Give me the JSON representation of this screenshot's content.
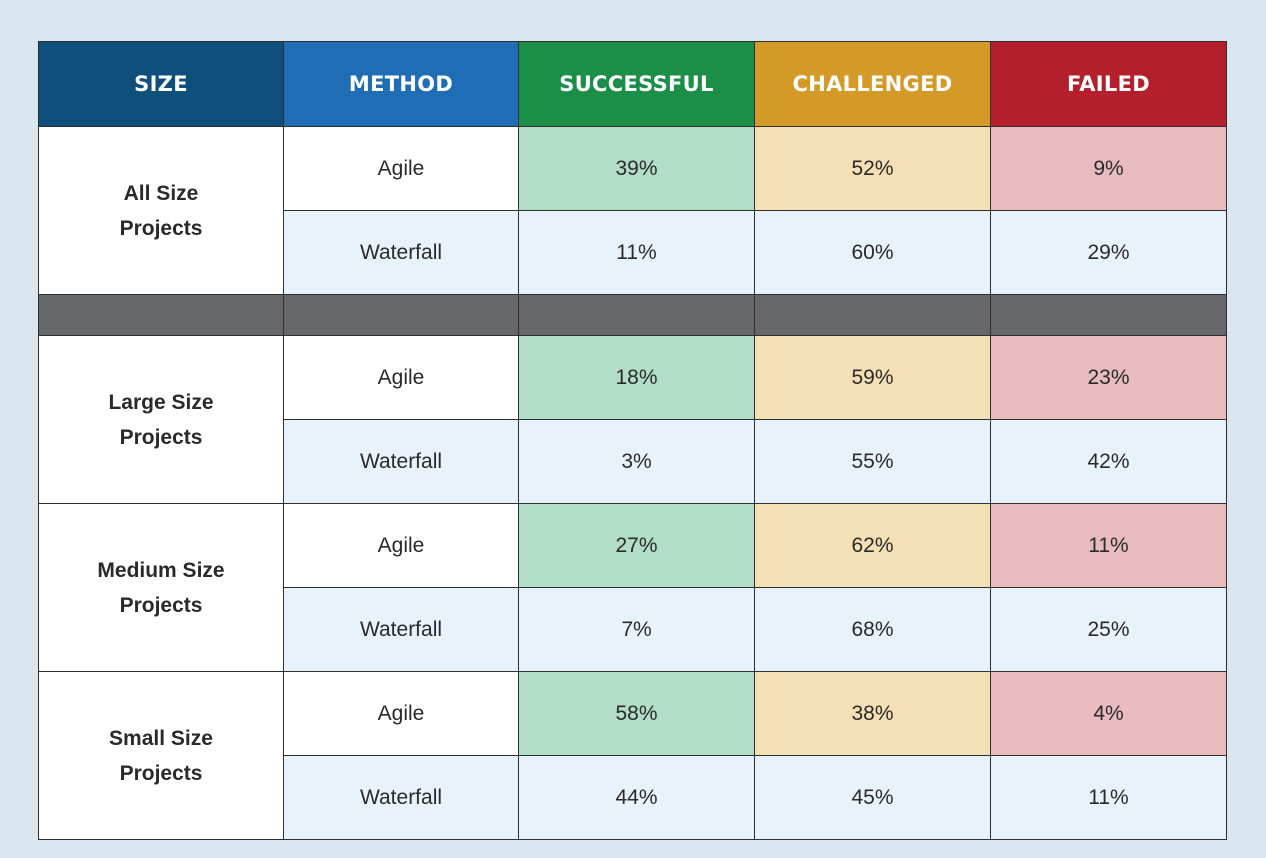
{
  "chart_data": {
    "type": "table",
    "columns": [
      "SIZE",
      "METHOD",
      "SUCCESSFUL",
      "CHALLENGED",
      "FAILED"
    ],
    "groups": [
      {
        "size_line1": "All Size",
        "size_line2": "Projects",
        "rows": [
          {
            "method": "Agile",
            "successful": "39%",
            "challenged": "52%",
            "failed": "9%"
          },
          {
            "method": "Waterfall",
            "successful": "11%",
            "challenged": "60%",
            "failed": "29%"
          }
        ]
      },
      {
        "size_line1": "Large Size",
        "size_line2": "Projects",
        "rows": [
          {
            "method": "Agile",
            "successful": "18%",
            "challenged": "59%",
            "failed": "23%"
          },
          {
            "method": "Waterfall",
            "successful": "3%",
            "challenged": "55%",
            "failed": "42%"
          }
        ]
      },
      {
        "size_line1": "Medium Size",
        "size_line2": "Projects",
        "rows": [
          {
            "method": "Agile",
            "successful": "27%",
            "challenged": "62%",
            "failed": "11%"
          },
          {
            "method": "Waterfall",
            "successful": "7%",
            "challenged": "68%",
            "failed": "25%"
          }
        ]
      },
      {
        "size_line1": "Small Size",
        "size_line2": "Projects",
        "rows": [
          {
            "method": "Agile",
            "successful": "58%",
            "challenged": "38%",
            "failed": "4%"
          },
          {
            "method": "Waterfall",
            "successful": "44%",
            "challenged": "45%",
            "failed": "11%"
          }
        ]
      }
    ],
    "colors": {
      "size_header": "#0f4f7c",
      "method_header": "#1f6db5",
      "successful": "#1b8e47",
      "challenged": "#d49a27",
      "failed": "#b41f2c",
      "separator": "#66676b"
    }
  }
}
